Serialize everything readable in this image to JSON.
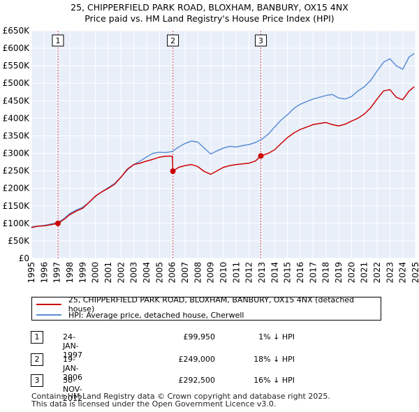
{
  "chart_data": {
    "type": "line",
    "title": "25, CHIPPERFIELD PARK ROAD, BLOXHAM, BANBURY, OX15 4NX",
    "subtitle": "Price paid vs. HM Land Registry's House Price Index (HPI)",
    "ylim": [
      0,
      650000
    ],
    "xlim": [
      1995,
      2025
    ],
    "y_ticks": [
      {
        "value": 0,
        "label": "£0"
      },
      {
        "value": 50000,
        "label": "£50K"
      },
      {
        "value": 100000,
        "label": "£100K"
      },
      {
        "value": 150000,
        "label": "£150K"
      },
      {
        "value": 200000,
        "label": "£200K"
      },
      {
        "value": 250000,
        "label": "£250K"
      },
      {
        "value": 300000,
        "label": "£300K"
      },
      {
        "value": 350000,
        "label": "£350K"
      },
      {
        "value": 400000,
        "label": "£400K"
      },
      {
        "value": 450000,
        "label": "£450K"
      },
      {
        "value": 500000,
        "label": "£500K"
      },
      {
        "value": 550000,
        "label": "£550K"
      },
      {
        "value": 600000,
        "label": "£600K"
      },
      {
        "value": 650000,
        "label": "£650K"
      }
    ],
    "x_ticks": [
      "1995",
      "1996",
      "1997",
      "1998",
      "1999",
      "2000",
      "2001",
      "2002",
      "2003",
      "2004",
      "2005",
      "2006",
      "2007",
      "2008",
      "2009",
      "2010",
      "2011",
      "2012",
      "2013",
      "2014",
      "2015",
      "2016",
      "2017",
      "2018",
      "2019",
      "2020",
      "2021",
      "2022",
      "2023",
      "2024",
      "2025"
    ],
    "grid": true,
    "series": [
      {
        "name": "25, CHIPPERFIELD PARK ROAD, BLOXHAM, BANBURY, OX15 4NX (detached house)",
        "color": "#cc0000",
        "x": [
          1995.0,
          1995.5,
          1996.0,
          1996.5,
          1997.07,
          1997.5,
          1998.0,
          1998.5,
          1999.0,
          1999.5,
          2000.0,
          2000.5,
          2001.0,
          2001.5,
          2002.0,
          2002.5,
          2003.0,
          2003.5,
          2004.0,
          2004.5,
          2005.0,
          2005.5,
          2006.0,
          2006.05,
          2006.5,
          2007.0,
          2007.5,
          2008.0,
          2008.5,
          2009.0,
          2009.5,
          2010.0,
          2010.5,
          2011.0,
          2011.5,
          2012.0,
          2012.5,
          2012.92,
          2013.5,
          2014.0,
          2014.5,
          2015.0,
          2015.5,
          2016.0,
          2016.5,
          2017.0,
          2017.5,
          2018.0,
          2018.5,
          2019.0,
          2019.5,
          2020.0,
          2020.5,
          2021.0,
          2021.5,
          2022.0,
          2022.5,
          2023.0,
          2023.5,
          2024.0,
          2024.5,
          2024.9
        ],
        "values": [
          88000,
          92000,
          93000,
          96000,
          99950,
          110000,
          125000,
          135000,
          143000,
          160000,
          178000,
          190000,
          200000,
          212000,
          232000,
          255000,
          268000,
          272000,
          278000,
          283000,
          289000,
          292000,
          292000,
          249000,
          260000,
          265000,
          268000,
          262000,
          248000,
          240000,
          250000,
          260000,
          265000,
          268000,
          270000,
          272000,
          278000,
          292500,
          300000,
          310000,
          328000,
          345000,
          358000,
          368000,
          375000,
          382000,
          385000,
          388000,
          382000,
          378000,
          383000,
          392000,
          400000,
          412000,
          430000,
          455000,
          478000,
          482000,
          460000,
          453000,
          478000,
          490000
        ]
      },
      {
        "name": "HPI: Average price, detached house, Cherwell",
        "color": "#5b8ed6",
        "x": [
          1995.0,
          1995.5,
          1996.0,
          1996.5,
          1997.0,
          1997.5,
          1998.0,
          1998.5,
          1999.0,
          1999.5,
          2000.0,
          2000.5,
          2001.0,
          2001.5,
          2002.0,
          2002.5,
          2003.0,
          2003.5,
          2004.0,
          2004.5,
          2005.0,
          2005.5,
          2006.0,
          2006.5,
          2007.0,
          2007.5,
          2008.0,
          2008.5,
          2009.0,
          2009.5,
          2010.0,
          2010.5,
          2011.0,
          2011.5,
          2012.0,
          2012.5,
          2013.0,
          2013.5,
          2014.0,
          2014.5,
          2015.0,
          2015.5,
          2016.0,
          2016.5,
          2017.0,
          2017.5,
          2018.0,
          2018.5,
          2019.0,
          2019.5,
          2020.0,
          2020.5,
          2021.0,
          2021.5,
          2022.0,
          2022.5,
          2023.0,
          2023.5,
          2024.0,
          2024.5,
          2024.9
        ],
        "values": [
          90000,
          92000,
          94000,
          98000,
          101000,
          112000,
          128000,
          138000,
          146000,
          160000,
          177000,
          190000,
          202000,
          214000,
          232000,
          253000,
          268000,
          278000,
          290000,
          300000,
          303000,
          302000,
          305000,
          318000,
          328000,
          335000,
          332000,
          315000,
          298000,
          307000,
          315000,
          320000,
          318000,
          322000,
          325000,
          331000,
          340000,
          355000,
          375000,
          395000,
          410000,
          428000,
          440000,
          448000,
          455000,
          460000,
          465000,
          468000,
          458000,
          455000,
          462000,
          478000,
          490000,
          508000,
          535000,
          560000,
          570000,
          550000,
          540000,
          575000,
          585000
        ]
      }
    ],
    "sales": [
      {
        "num": "1",
        "x": 1997.07,
        "value": 99950,
        "date": "24-JAN-1997",
        "price": "£99,950",
        "hpi": "1% ↓ HPI"
      },
      {
        "num": "2",
        "x": 2006.05,
        "value": 249000,
        "date": "19-JAN-2006",
        "price": "£249,000",
        "hpi": "18% ↓ HPI"
      },
      {
        "num": "3",
        "x": 2012.92,
        "value": 292500,
        "date": "30-NOV-2012",
        "price": "£292,500",
        "hpi": "16% ↓ HPI"
      }
    ]
  },
  "legend": {
    "property_label": "25, CHIPPERFIELD PARK ROAD, BLOXHAM, BANBURY, OX15 4NX (detached house)",
    "hpi_label": "HPI: Average price, detached house, Cherwell"
  },
  "footer": {
    "line1": "Contains HM Land Registry data © Crown copyright and database right 2025.",
    "line2": "This data is licensed under the Open Government Licence v3.0."
  }
}
